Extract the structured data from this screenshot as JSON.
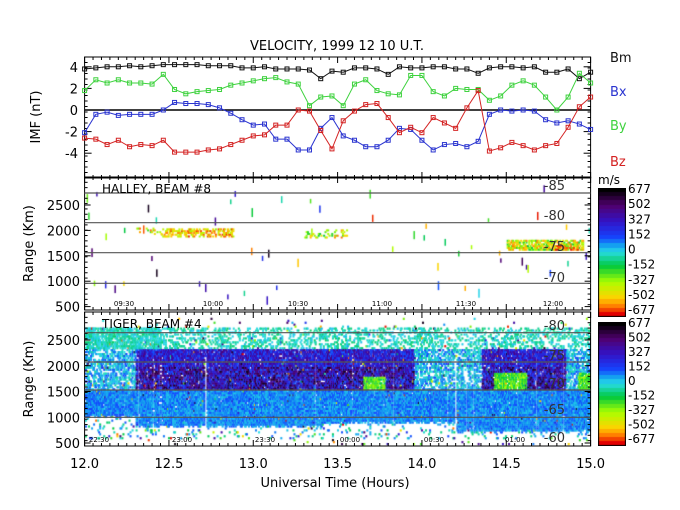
{
  "title": "VELOCITY, 1999 12 10 U.T.",
  "colors": {
    "Bm": "#111111",
    "Bx": "#2a34d0",
    "By": "#3ed23e",
    "Bz": "#d42222",
    "axis": "#000000",
    "latline": "#555555"
  },
  "chart_data": [
    {
      "type": "line",
      "panel": "imf",
      "ylabel": "IMF (nT)",
      "ylim": [
        -6,
        6
      ],
      "xlim": [
        12.0,
        15.0
      ],
      "yticks": [
        "4",
        "2",
        "0",
        "-2",
        "-4"
      ],
      "ytick_values": [
        4,
        2,
        0,
        -2,
        -4
      ],
      "marker": "square",
      "x_start": 12.0,
      "x_step_hours": 0.0667,
      "series": [
        {
          "name": "Bm",
          "values": [
            3.8,
            3.9,
            4.0,
            4.0,
            4.1,
            4.0,
            4.1,
            4.2,
            4.2,
            4.2,
            4.2,
            4.1,
            4.1,
            4.1,
            3.9,
            3.9,
            4.0,
            3.8,
            3.8,
            3.8,
            3.7,
            2.9,
            3.6,
            3.5,
            3.9,
            3.9,
            3.8,
            3.3,
            4.0,
            3.9,
            3.9,
            4.0,
            4.0,
            3.8,
            3.8,
            3.4,
            3.9,
            4.0,
            4.0,
            3.9,
            4.0,
            3.5,
            3.5,
            3.8,
            2.9,
            3.5
          ]
        },
        {
          "name": "Bx",
          "values": [
            -2.1,
            -0.4,
            -0.2,
            -0.5,
            -0.4,
            -0.4,
            -0.4,
            0.0,
            0.7,
            0.6,
            0.6,
            0.5,
            0.2,
            -0.3,
            -0.9,
            -1.4,
            -1.3,
            -2.7,
            -2.7,
            -3.7,
            -3.7,
            -1.7,
            -0.7,
            -2.4,
            -2.8,
            -3.4,
            -3.4,
            -2.8,
            -1.7,
            -1.8,
            -2.8,
            -3.7,
            -3.2,
            -3.1,
            -3.4,
            -2.9,
            -0.4,
            0.0,
            -0.1,
            0.0,
            -0.1,
            -0.9,
            -1.2,
            -1.0,
            -1.3,
            -1.8
          ]
        },
        {
          "name": "By",
          "values": [
            1.8,
            2.8,
            2.5,
            2.8,
            2.5,
            2.5,
            2.4,
            3.3,
            1.9,
            1.5,
            1.7,
            1.8,
            1.9,
            2.3,
            2.5,
            2.7,
            2.9,
            3.0,
            2.6,
            2.4,
            0.4,
            1.2,
            1.3,
            0.4,
            2.4,
            2.8,
            1.8,
            1.5,
            1.4,
            3.2,
            3.2,
            1.7,
            1.3,
            2.0,
            1.9,
            1.9,
            0.9,
            1.3,
            2.3,
            2.7,
            2.3,
            1.2,
            0.0,
            1.2,
            3.4,
            2.5
          ]
        },
        {
          "name": "Bz",
          "values": [
            -2.6,
            -2.7,
            -3.2,
            -2.8,
            -3.4,
            -3.2,
            -3.3,
            -2.8,
            -3.9,
            -3.9,
            -3.9,
            -3.7,
            -3.6,
            -3.2,
            -2.8,
            -2.4,
            -2.3,
            -1.4,
            -1.4,
            0.0,
            -0.1,
            -1.9,
            -3.6,
            -1.0,
            -0.1,
            0.5,
            0.6,
            -0.7,
            -2.1,
            -1.6,
            -2.1,
            -0.7,
            -1.2,
            -1.7,
            0.2,
            1.8,
            -3.8,
            -3.5,
            -3.0,
            -3.3,
            -3.7,
            -3.3,
            -3.1,
            -1.6,
            0.3,
            1.2
          ]
        }
      ]
    },
    {
      "type": "heatmap",
      "panel": "halley",
      "label": "HALLEY, BEAM #8",
      "ylabel": "Range (Km)",
      "yticks": [
        "2500",
        "2000",
        "1500",
        "1000",
        "500"
      ],
      "ytick_values": [
        2500,
        2000,
        1500,
        1000,
        500
      ],
      "lat_labels": [
        "-85",
        "-80",
        "-75",
        "-70"
      ],
      "time_labels": [
        "09:30",
        "10:00",
        "10:30",
        "11:00",
        "11:30",
        "12:00"
      ],
      "colorbar_unit": "m/s",
      "colorbar_labels": [
        "677",
        "502",
        "327",
        "152",
        "0",
        "-152",
        "-327",
        "-502",
        "-677"
      ]
    },
    {
      "type": "heatmap",
      "panel": "tiger",
      "label": "TIGER, BEAM #4",
      "ylabel": "Range (Km)",
      "yticks": [
        "2500",
        "2000",
        "1500",
        "1000",
        "500"
      ],
      "ytick_values": [
        2500,
        2000,
        1500,
        1000,
        500
      ],
      "lat_labels": [
        "-80",
        "-75",
        "-70",
        "-65",
        "-60"
      ],
      "time_labels": [
        "22:30",
        "23:00",
        "23:30",
        "00:00",
        "00:30",
        "01:00"
      ],
      "colorbar_labels": [
        "677",
        "502",
        "327",
        "152",
        "0",
        "-152",
        "-327",
        "-502",
        "-677"
      ],
      "xlabel": "Universal Time (Hours)",
      "xticks": [
        "12.0",
        "12.5",
        "13.0",
        "13.5",
        "14.0",
        "14.5",
        "15.0"
      ],
      "xtick_values": [
        12.0,
        12.5,
        13.0,
        13.5,
        14.0,
        14.5,
        15.0
      ]
    }
  ]
}
